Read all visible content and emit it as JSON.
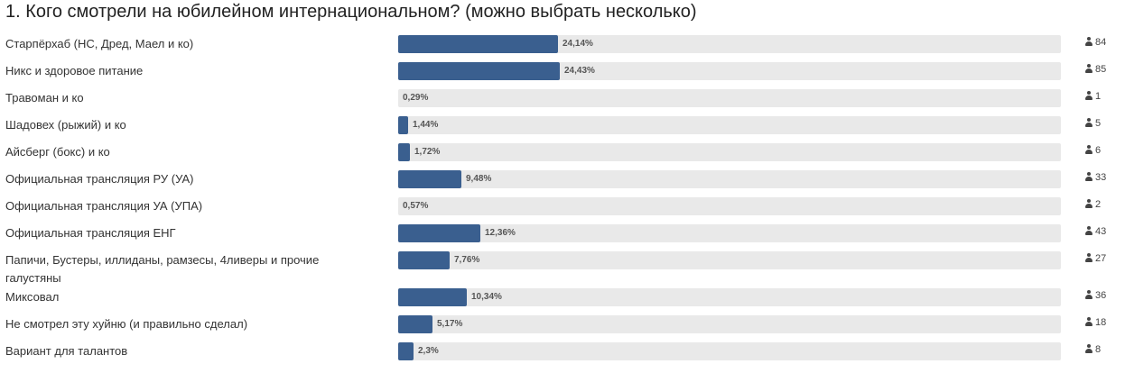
{
  "poll": {
    "title": "1. Кого смотрели на юбилейном интернациональном? (можно выбрать несколько)"
  },
  "chart_data": {
    "type": "bar",
    "orientation": "horizontal",
    "title": "1. Кого смотрели на юбилейном интернациональном? (можно выбрать несколько)",
    "xlim": [
      0,
      100
    ],
    "unit": "%",
    "categories": [
      "Старпёрхаб (НС, Дред, Маел и ко)",
      "Никс и здоровое питание",
      "Травоман и ко",
      "Шадовех (рыжий) и ко",
      "Айсберг (бокс) и ко",
      "Официальная трансляция РУ (УА)",
      "Официальная трансляция УА (УПА)",
      "Официальная трансляция ЕНГ",
      "Папичи, Бустеры, иллиданы, рамзесы, 4ливеры и прочие галустяны",
      "Миксовал",
      "Не смотрел эту хуйню (и правильно сделал)",
      "Вариант для талантов"
    ],
    "values": [
      24.14,
      24.43,
      0.29,
      1.44,
      1.72,
      9.48,
      0.57,
      12.36,
      7.76,
      10.34,
      5.17,
      2.3
    ],
    "percent_labels": [
      "24,14%",
      "24,43%",
      "0,29%",
      "1,44%",
      "1,72%",
      "9,48%",
      "0,57%",
      "12,36%",
      "7,76%",
      "10,34%",
      "5,17%",
      "2,3%"
    ],
    "votes": [
      "84",
      "85",
      "1",
      "5",
      "6",
      "33",
      "2",
      "43",
      "27",
      "36",
      "18",
      "8"
    ],
    "bar_color": "#3a5f8f",
    "track_color": "#e9e9e9",
    "vote_icon": "user-icon"
  }
}
